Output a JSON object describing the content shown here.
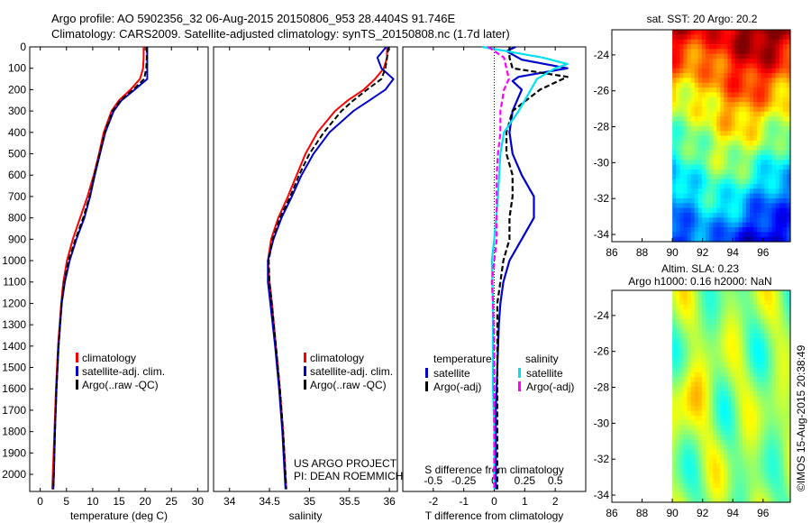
{
  "title_line1": "Argo profile: AO 5902356_32 06-Aug-2015 20150806_953 28.4404S 91.746E",
  "title_line2": "Climatology: CARS2009. Satellite-adjusted climatology: synTS_20150808.nc (1.7d later)",
  "credit": "©IMOS 15-Aug-2015 20:38:49",
  "project_line1": "US ARGO PROJECT",
  "project_line2": "PI: DEAN ROEMMICH",
  "colors": {
    "climatology": "#ff0000",
    "satellite": "#0000cc",
    "argo": "#000000",
    "sat_s": "#00e0f0",
    "argo_s": "#ff00ff"
  },
  "chart_data": [
    {
      "type": "line",
      "name": "temperature",
      "xlabel": "temperature (deg C)",
      "xticks": [
        0,
        5,
        10,
        15,
        20,
        25,
        30
      ],
      "xlim": [
        -2,
        32
      ],
      "ylim": [
        2080,
        0
      ],
      "yticks": [
        0,
        100,
        200,
        300,
        400,
        500,
        600,
        700,
        800,
        900,
        1000,
        1100,
        1200,
        1300,
        1400,
        1500,
        1600,
        1700,
        1800,
        1900,
        2000
      ],
      "legend": [
        "climatology",
        "satellite-adj. clim.",
        "Argo(..raw -QC)"
      ],
      "series": [
        {
          "name": "climatology",
          "depth": [
            0,
            50,
            100,
            150,
            200,
            250,
            300,
            400,
            500,
            600,
            700,
            800,
            900,
            1000,
            1100,
            1200,
            1400,
            1600,
            1800,
            2000,
            2070
          ],
          "values": [
            19.7,
            19.7,
            19.6,
            19.0,
            17.2,
            15.0,
            13.6,
            12.1,
            11.2,
            10.2,
            9.0,
            7.6,
            6.2,
            5.1,
            4.4,
            4.0,
            3.4,
            3.0,
            2.7,
            2.4,
            2.3
          ]
        },
        {
          "name": "satellite-adj. clim.",
          "depth": [
            0,
            50,
            100,
            150,
            200,
            250,
            300,
            400,
            500,
            600,
            700,
            800,
            900,
            1000,
            1100,
            1200,
            1400,
            1600,
            1800,
            2000,
            2070
          ],
          "values": [
            20.4,
            20.4,
            20.4,
            20.4,
            18.0,
            15.5,
            14.0,
            12.4,
            11.4,
            10.4,
            9.5,
            8.4,
            6.9,
            5.6,
            4.7,
            4.1,
            3.5,
            3.1,
            2.8,
            2.6,
            2.5
          ]
        },
        {
          "name": "Argo(..raw -QC)",
          "depth": [
            0,
            50,
            100,
            150,
            200,
            250,
            300,
            400,
            500,
            600,
            700,
            800,
            900,
            1000,
            1100,
            1200,
            1400,
            1600,
            1800,
            2000,
            2070
          ],
          "values": [
            20.3,
            20.3,
            20.2,
            19.8,
            17.7,
            15.3,
            13.8,
            12.3,
            11.3,
            10.3,
            9.4,
            8.2,
            6.7,
            5.4,
            4.6,
            4.1,
            3.5,
            3.1,
            2.8,
            2.6,
            2.5
          ]
        }
      ]
    },
    {
      "type": "line",
      "name": "salinity",
      "xlabel": "salinity",
      "xticks": [
        34,
        34.5,
        35,
        35.5,
        36
      ],
      "xlim": [
        33.8,
        36.1
      ],
      "legend": [
        "climatology",
        "satellite-adj. clim.",
        "Argo(..raw -QC)"
      ],
      "series": [
        {
          "name": "climatology",
          "depth": [
            0,
            50,
            100,
            150,
            200,
            250,
            300,
            400,
            500,
            600,
            700,
            800,
            900,
            1000,
            1100,
            1200,
            1400,
            1600,
            1800,
            2000,
            2070
          ],
          "values": [
            35.97,
            35.97,
            35.93,
            35.82,
            35.68,
            35.48,
            35.32,
            35.1,
            34.95,
            34.84,
            34.73,
            34.61,
            34.52,
            34.48,
            34.5,
            34.53,
            34.58,
            34.63,
            34.67,
            34.7,
            34.71
          ]
        },
        {
          "name": "satellite-adj. clim.",
          "depth": [
            0,
            50,
            100,
            150,
            200,
            250,
            300,
            400,
            500,
            600,
            700,
            800,
            900,
            1000,
            1100,
            1200,
            1400,
            1600,
            1800,
            2000,
            2070
          ],
          "values": [
            35.96,
            35.85,
            35.9,
            36.05,
            35.95,
            35.75,
            35.55,
            35.25,
            35.05,
            34.9,
            34.78,
            34.65,
            34.55,
            34.48,
            34.48,
            34.51,
            34.57,
            34.62,
            34.66,
            34.69,
            34.7
          ]
        },
        {
          "name": "Argo(..raw -QC)",
          "depth": [
            0,
            50,
            100,
            150,
            200,
            250,
            300,
            400,
            500,
            600,
            700,
            800,
            900,
            1000,
            1100,
            1200,
            1400,
            1600,
            1800,
            2000,
            2070
          ],
          "values": [
            35.99,
            35.97,
            35.95,
            35.9,
            35.72,
            35.55,
            35.4,
            35.18,
            35.0,
            34.87,
            34.76,
            34.63,
            34.54,
            34.49,
            34.5,
            34.53,
            34.58,
            34.63,
            34.67,
            34.7,
            34.71
          ]
        }
      ]
    },
    {
      "type": "line",
      "name": "difference",
      "xlabel": "T difference from climatology",
      "xlabel2": "S difference from climatology",
      "xticks": [
        -2,
        -1,
        0,
        1,
        2
      ],
      "xticks_s": [
        -0.5,
        -0.25,
        0,
        0.25,
        0.5
      ],
      "xlim": [
        -3,
        3
      ],
      "legend_t_title": "temperature",
      "legend_s_title": "salinity",
      "legend_t": [
        "satellite",
        "Argo(-adj)"
      ],
      "legend_s": [
        "satellite",
        "Argo(-adj)"
      ],
      "series": [
        {
          "name": "T satellite",
          "depth": [
            0,
            20,
            60,
            100,
            140,
            160,
            200,
            300,
            400,
            500,
            600,
            700,
            800,
            900,
            1000,
            1100,
            1200,
            1300,
            1500,
            1700,
            1900,
            2070
          ],
          "values": [
            0.7,
            0.4,
            0.9,
            2.4,
            0.8,
            0.6,
            0.9,
            0.6,
            0.5,
            0.6,
            0.9,
            1.3,
            1.3,
            0.9,
            0.5,
            0.3,
            0.2,
            0.15,
            0.1,
            0.05,
            0.05,
            0.05
          ]
        },
        {
          "name": "T Argo(-adj)",
          "depth": [
            0,
            50,
            100,
            140,
            160,
            200,
            300,
            400,
            500,
            600,
            700,
            800,
            900,
            1000,
            1100,
            1200,
            1400,
            1600,
            1800,
            2000,
            2070
          ],
          "values": [
            0.5,
            0.5,
            0.6,
            2.4,
            2.1,
            1.5,
            0.6,
            0.4,
            0.4,
            0.6,
            0.6,
            0.5,
            0.5,
            0.3,
            0.2,
            0.1,
            0.1,
            0.1,
            0.1,
            0.1,
            0.1
          ]
        },
        {
          "name": "S satellite",
          "depth": [
            0,
            50,
            80,
            100,
            150,
            200,
            300,
            400,
            500,
            700,
            900,
            1000,
            1200,
            1400,
            1600,
            1800,
            1950,
            2070
          ],
          "values": [
            -0.1,
            0.4,
            0.6,
            0.5,
            0.35,
            0.3,
            0.2,
            0.08,
            0.05,
            0.03,
            0.0,
            -0.02,
            -0.01,
            -0.01,
            -0.01,
            0.0,
            0.0,
            0.0
          ]
        },
        {
          "name": "S Argo(-adj)",
          "depth": [
            0,
            50,
            100,
            150,
            200,
            300,
            400,
            500,
            600,
            700,
            800,
            900,
            1000,
            1100,
            1200,
            1400,
            1600,
            1800,
            2000,
            2070
          ],
          "values": [
            -0.05,
            0.08,
            0.1,
            0.12,
            0.08,
            0.05,
            0.05,
            0.03,
            0.02,
            0.02,
            0.02,
            0.02,
            0.0,
            -0.02,
            -0.01,
            0.0,
            0.0,
            0.0,
            0.0,
            0.0
          ]
        }
      ]
    },
    {
      "type": "heatmap",
      "name": "sst_map",
      "title": "sat. SST: 20 Argo: 20.2",
      "xticks": [
        86,
        88,
        90,
        92,
        94,
        96
      ],
      "yticks": [
        -24,
        -26,
        -28,
        -30,
        -32,
        -34
      ],
      "xlim": [
        86,
        97.8
      ],
      "ylim": [
        -22.6,
        -34.4
      ],
      "data_xlim": [
        90,
        97.8
      ],
      "marker_lon": 91.746,
      "marker_lat": -28.44
    },
    {
      "type": "heatmap",
      "name": "sla_map",
      "title_line1": "Altim. SLA: 0.23",
      "title_line2": "Argo h1000: 0.16 h2000: NaN",
      "xticks": [
        86,
        88,
        90,
        92,
        94,
        96
      ],
      "yticks": [
        -24,
        -26,
        -28,
        -30,
        -32,
        -34
      ],
      "xlim": [
        86,
        97.8
      ],
      "ylim": [
        -22.6,
        -34.4
      ],
      "data_xlim": [
        90,
        97.8
      ]
    }
  ]
}
